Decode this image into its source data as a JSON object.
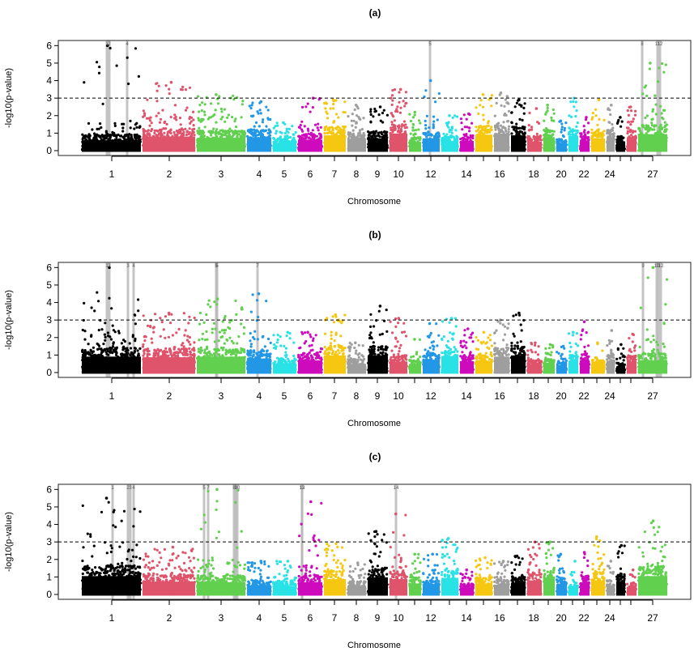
{
  "chart_data": [
    {
      "type": "scatter",
      "subtype": "manhattan",
      "title": "(a)",
      "xlabel": "Chromosome",
      "ylabel": "-log10(p-value)",
      "ylim": [
        0,
        6.2
      ],
      "yticks": [
        0,
        1,
        2,
        3,
        4,
        5,
        6
      ],
      "threshold": 3,
      "x_tick_labels_shown": [
        "1",
        "2",
        "3",
        "4",
        "5",
        "6",
        "7",
        "8",
        "9",
        "10",
        "12",
        "14",
        "16",
        "18",
        "20",
        "22",
        "24",
        "27"
      ],
      "chromosome_peaks": [
        {
          "chr": "1",
          "max": 6.0,
          "base": 1.7
        },
        {
          "chr": "2",
          "max": 3.9,
          "base": 2.3
        },
        {
          "chr": "3",
          "max": 3.2,
          "base": 2.1
        },
        {
          "chr": "4",
          "max": 2.8,
          "base": 2.2
        },
        {
          "chr": "5",
          "max": 1.6,
          "base": 1.3
        },
        {
          "chr": "6",
          "max": 3.0,
          "base": 1.8
        },
        {
          "chr": "7",
          "max": 2.9,
          "base": 2.5
        },
        {
          "chr": "8",
          "max": 2.6,
          "base": 1.9
        },
        {
          "chr": "9",
          "max": 2.5,
          "base": 2.0
        },
        {
          "chr": "10",
          "max": 3.5,
          "base": 2.8
        },
        {
          "chr": "11",
          "max": 2.2,
          "base": 1.4
        },
        {
          "chr": "12",
          "max": 4.0,
          "base": 2.0
        },
        {
          "chr": "13",
          "max": 2.0,
          "base": 1.6
        },
        {
          "chr": "14",
          "max": 2.1,
          "base": 1.6
        },
        {
          "chr": "15",
          "max": 3.2,
          "base": 2.6
        },
        {
          "chr": "16",
          "max": 3.3,
          "base": 2.8
        },
        {
          "chr": "17",
          "max": 2.9,
          "base": 2.5
        },
        {
          "chr": "18",
          "max": 2.4,
          "base": 1.5
        },
        {
          "chr": "19",
          "max": 2.6,
          "base": 2.2
        },
        {
          "chr": "20",
          "max": 1.7,
          "base": 1.2
        },
        {
          "chr": "21",
          "max": 3.0,
          "base": 2.4
        },
        {
          "chr": "22",
          "max": 1.9,
          "base": 1.5
        },
        {
          "chr": "23",
          "max": 2.9,
          "base": 2.0
        },
        {
          "chr": "24",
          "max": 2.6,
          "base": 2.2
        },
        {
          "chr": "25",
          "max": 1.9,
          "base": 1.5
        },
        {
          "chr": "26",
          "max": 2.5,
          "base": 2.2
        },
        {
          "chr": "27",
          "max": 5.0,
          "base": 2.7
        }
      ],
      "highlighted_loci": [
        {
          "label": "1",
          "chr": "1"
        },
        {
          "label": "2",
          "chr": "1"
        },
        {
          "label": "4",
          "chr": "1"
        },
        {
          "label": "5",
          "chr": "12"
        },
        {
          "label": "8",
          "chr": "27"
        },
        {
          "label": "11",
          "chr": "27"
        },
        {
          "label": "12",
          "chr": "27"
        }
      ]
    },
    {
      "type": "scatter",
      "subtype": "manhattan",
      "title": "(b)",
      "xlabel": "Chromosome",
      "ylabel": "-log10(p-value)",
      "ylim": [
        0,
        6.2
      ],
      "yticks": [
        0,
        1,
        2,
        3,
        4,
        5,
        6
      ],
      "threshold": 3,
      "x_tick_labels_shown": [
        "1",
        "2",
        "3",
        "4",
        "5",
        "6",
        "7",
        "8",
        "9",
        "10",
        "12",
        "14",
        "16",
        "18",
        "20",
        "22",
        "24",
        "27"
      ],
      "chromosome_peaks": [
        {
          "chr": "1",
          "max": 6.0,
          "base": 2.6
        },
        {
          "chr": "2",
          "max": 3.4,
          "base": 2.5
        },
        {
          "chr": "3",
          "max": 4.2,
          "base": 2.6
        },
        {
          "chr": "4",
          "max": 4.5,
          "base": 2.3
        },
        {
          "chr": "5",
          "max": 2.3,
          "base": 1.5
        },
        {
          "chr": "6",
          "max": 2.3,
          "base": 2.0
        },
        {
          "chr": "7",
          "max": 3.3,
          "base": 2.8
        },
        {
          "chr": "8",
          "max": 1.7,
          "base": 1.4
        },
        {
          "chr": "9",
          "max": 3.8,
          "base": 2.8
        },
        {
          "chr": "10",
          "max": 3.1,
          "base": 1.8
        },
        {
          "chr": "11",
          "max": 1.9,
          "base": 1.4
        },
        {
          "chr": "12",
          "max": 2.8,
          "base": 2.1
        },
        {
          "chr": "13",
          "max": 3.1,
          "base": 2.7
        },
        {
          "chr": "14",
          "max": 2.5,
          "base": 1.8
        },
        {
          "chr": "15",
          "max": 2.3,
          "base": 1.9
        },
        {
          "chr": "16",
          "max": 3.0,
          "base": 2.6
        },
        {
          "chr": "17",
          "max": 3.4,
          "base": 2.8
        },
        {
          "chr": "18",
          "max": 1.7,
          "base": 1.3
        },
        {
          "chr": "19",
          "max": 1.6,
          "base": 1.4
        },
        {
          "chr": "20",
          "max": 1.5,
          "base": 1.2
        },
        {
          "chr": "21",
          "max": 2.3,
          "base": 1.9
        },
        {
          "chr": "22",
          "max": 2.9,
          "base": 2.0
        },
        {
          "chr": "23",
          "max": 1.7,
          "base": 1.3
        },
        {
          "chr": "24",
          "max": 2.4,
          "base": 1.9
        },
        {
          "chr": "25",
          "max": 1.6,
          "base": 1.0
        },
        {
          "chr": "26",
          "max": 2.2,
          "base": 1.8
        },
        {
          "chr": "27",
          "max": 6.0,
          "base": 2.0
        }
      ],
      "highlighted_loci": [
        {
          "label": "1",
          "chr": "1"
        },
        {
          "label": "2",
          "chr": "1"
        },
        {
          "label": "3",
          "chr": "1"
        },
        {
          "label": "4",
          "chr": "1"
        },
        {
          "label": "5",
          "chr": "3"
        },
        {
          "label": "6",
          "chr": "3"
        },
        {
          "label": "7",
          "chr": "4"
        },
        {
          "label": "9",
          "chr": "27"
        },
        {
          "label": "10",
          "chr": "27"
        },
        {
          "label": "11",
          "chr": "27"
        },
        {
          "label": "12",
          "chr": "27"
        }
      ]
    },
    {
      "type": "scatter",
      "subtype": "manhattan",
      "title": "(c)",
      "xlabel": "Chromosome",
      "ylabel": "-log10(p-value)",
      "ylim": [
        0,
        6.2
      ],
      "yticks": [
        0,
        1,
        2,
        3,
        4,
        5,
        6
      ],
      "threshold": 3,
      "x_tick_labels_shown": [
        "1",
        "2",
        "3",
        "4",
        "5",
        "6",
        "7",
        "8",
        "9",
        "10",
        "12",
        "14",
        "16",
        "18",
        "20",
        "22",
        "24",
        "27"
      ],
      "chromosome_peaks": [
        {
          "chr": "1",
          "max": 5.5,
          "base": 3.0
        },
        {
          "chr": "2",
          "max": 2.7,
          "base": 2.1
        },
        {
          "chr": "3",
          "max": 6.0,
          "base": 2.0
        },
        {
          "chr": "4",
          "max": 1.9,
          "base": 1.5
        },
        {
          "chr": "5",
          "max": 1.9,
          "base": 1.4
        },
        {
          "chr": "6",
          "max": 5.3,
          "base": 2.0
        },
        {
          "chr": "7",
          "max": 2.9,
          "base": 2.5
        },
        {
          "chr": "8",
          "max": 1.8,
          "base": 1.4
        },
        {
          "chr": "9",
          "max": 3.6,
          "base": 2.8
        },
        {
          "chr": "10",
          "max": 4.6,
          "base": 2.5
        },
        {
          "chr": "11",
          "max": 2.3,
          "base": 1.8
        },
        {
          "chr": "12",
          "max": 2.3,
          "base": 1.7
        },
        {
          "chr": "13",
          "max": 3.2,
          "base": 2.7
        },
        {
          "chr": "14",
          "max": 1.4,
          "base": 1.1
        },
        {
          "chr": "15",
          "max": 2.1,
          "base": 1.8
        },
        {
          "chr": "16",
          "max": 1.9,
          "base": 1.6
        },
        {
          "chr": "17",
          "max": 2.2,
          "base": 1.9
        },
        {
          "chr": "18",
          "max": 3.0,
          "base": 2.3
        },
        {
          "chr": "19",
          "max": 3.0,
          "base": 2.7
        },
        {
          "chr": "20",
          "max": 2.3,
          "base": 1.7
        },
        {
          "chr": "21",
          "max": 1.9,
          "base": 1.0
        },
        {
          "chr": "22",
          "max": 2.4,
          "base": 2.0
        },
        {
          "chr": "23",
          "max": 3.3,
          "base": 2.3
        },
        {
          "chr": "24",
          "max": 1.9,
          "base": 1.5
        },
        {
          "chr": "25",
          "max": 2.8,
          "base": 2.2
        },
        {
          "chr": "26",
          "max": 1.4,
          "base": 1.2
        },
        {
          "chr": "27",
          "max": 4.2,
          "base": 3.0
        }
      ],
      "highlighted_loci": [
        {
          "label": "1",
          "chr": "1"
        },
        {
          "label": "2",
          "chr": "1"
        },
        {
          "label": "3",
          "chr": "1"
        },
        {
          "label": "4",
          "chr": "1"
        },
        {
          "label": "5",
          "chr": "3"
        },
        {
          "label": "7",
          "chr": "3"
        },
        {
          "label": "8",
          "chr": "3"
        },
        {
          "label": "9",
          "chr": "3"
        },
        {
          "label": "10",
          "chr": "3"
        },
        {
          "label": "12",
          "chr": "6"
        },
        {
          "label": "13",
          "chr": "6"
        },
        {
          "label": "14",
          "chr": "10"
        }
      ]
    }
  ],
  "chromosomes": [
    "1",
    "2",
    "3",
    "4",
    "5",
    "6",
    "7",
    "8",
    "9",
    "10",
    "11",
    "12",
    "13",
    "14",
    "15",
    "16",
    "17",
    "18",
    "19",
    "20",
    "21",
    "22",
    "23",
    "24",
    "25",
    "26",
    "27"
  ],
  "palette": [
    "#000000",
    "#DF536B",
    "#61D04F",
    "#2297E6",
    "#28E2E5",
    "#CD0BBC",
    "#F5C710",
    "#9E9E9E"
  ]
}
